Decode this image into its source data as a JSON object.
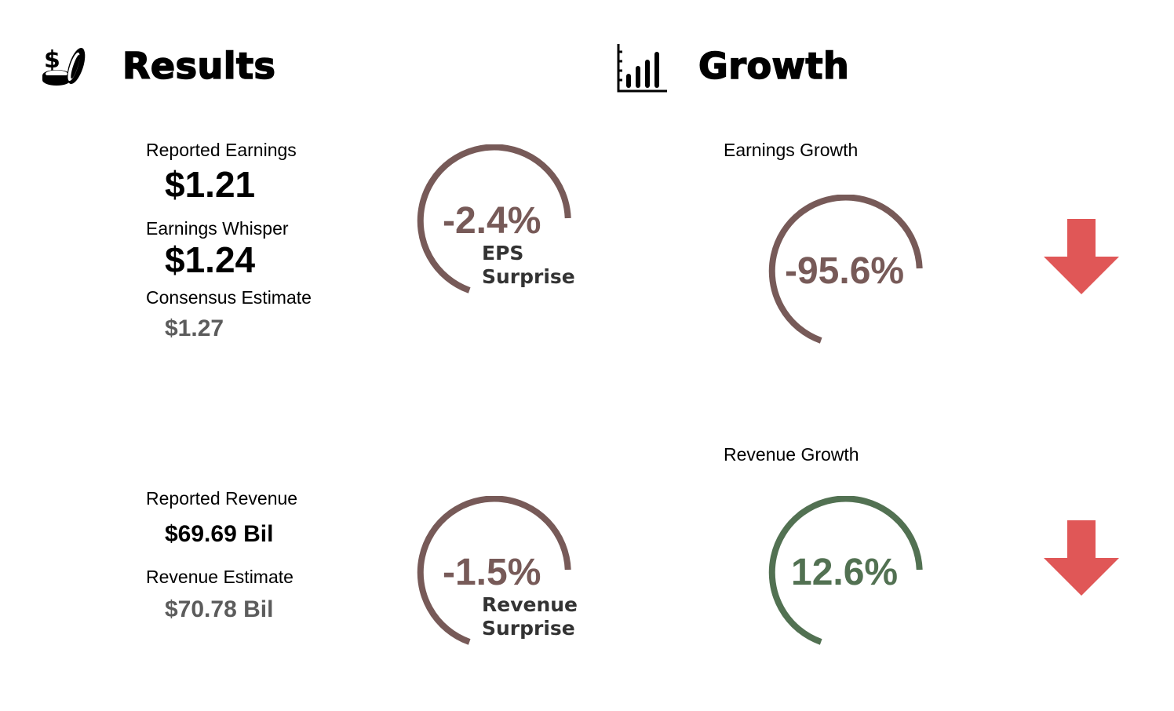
{
  "colors": {
    "negative": "#775a58",
    "positive": "#527152",
    "arrow_down": "#e05757"
  },
  "results": {
    "title": "Results",
    "icon": "coins-dollar-icon",
    "reported_earnings_label": "Reported Earnings",
    "reported_earnings_value": "$1.21",
    "earnings_whisper_label": "Earnings Whisper",
    "earnings_whisper_value": "$1.24",
    "consensus_label": "Consensus Estimate",
    "consensus_value": "$1.27",
    "reported_revenue_label": "Reported Revenue",
    "reported_revenue_value": "$69.69 Bil",
    "revenue_estimate_label": "Revenue Estimate",
    "revenue_estimate_value": "$70.78 Bil",
    "eps_surprise": {
      "value": "-2.4%",
      "line1": "EPS",
      "line2": "Surprise"
    },
    "revenue_surprise": {
      "value": "-1.5%",
      "line1": "Revenue",
      "line2": "Surprise"
    }
  },
  "growth": {
    "title": "Growth",
    "icon": "bar-chart-icon",
    "earnings_growth_label": "Earnings Growth",
    "earnings_growth_value": "-95.6%",
    "earnings_trend": "down-arrow-icon",
    "revenue_growth_label": "Revenue Growth",
    "revenue_growth_value": "12.6%",
    "revenue_trend": "down-arrow-icon"
  }
}
